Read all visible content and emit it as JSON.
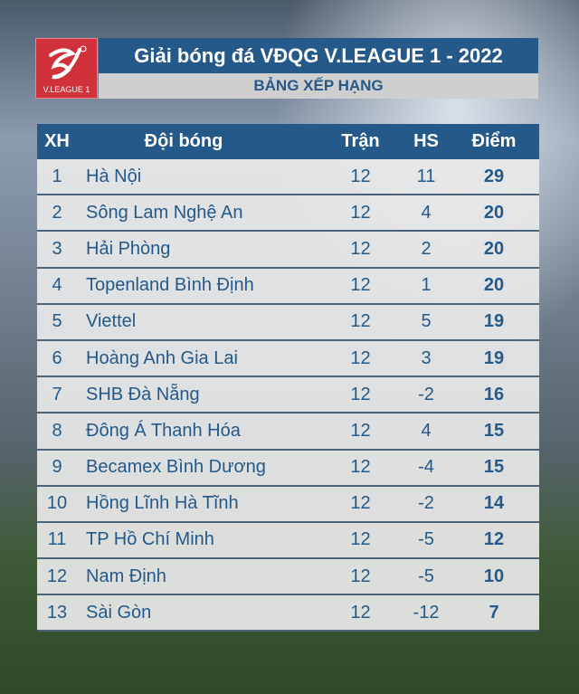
{
  "logo": {
    "text": "V.LEAGUE 1",
    "color": "#d0313a"
  },
  "header": {
    "title": "Giải bóng đá VĐQG V.LEAGUE 1 - 2022",
    "subtitle": "BẢNG XẾP HẠNG"
  },
  "table": {
    "columns": [
      "XH",
      "Đội bóng",
      "Trận",
      "HS",
      "Điểm"
    ],
    "rows": [
      [
        "1",
        "Hà Nội",
        "12",
        "11",
        "29"
      ],
      [
        "2",
        "Sông Lam Nghệ An",
        "12",
        "4",
        "20"
      ],
      [
        "3",
        "Hải Phòng",
        "12",
        "2",
        "20"
      ],
      [
        "4",
        "Topenland Bình Định",
        "12",
        "1",
        "20"
      ],
      [
        "5",
        "Viettel",
        "12",
        "5",
        "19"
      ],
      [
        "6",
        "Hoàng Anh Gia Lai",
        "12",
        "3",
        "19"
      ],
      [
        "7",
        "SHB Đà Nẵng",
        "12",
        "-2",
        "16"
      ],
      [
        "8",
        "Đông Á Thanh Hóa",
        "12",
        "4",
        "15"
      ],
      [
        "9",
        "Becamex Bình Dương",
        "12",
        "-4",
        "15"
      ],
      [
        "10",
        "Hồng Lĩnh Hà Tĩnh",
        "12",
        "-2",
        "14"
      ],
      [
        "11",
        "TP Hồ Chí Minh",
        "12",
        "-5",
        "12"
      ],
      [
        "12",
        "Nam Định",
        "12",
        "-5",
        "10"
      ],
      [
        "13",
        "Sài Gòn",
        "12",
        "-12",
        "7"
      ]
    ]
  },
  "colors": {
    "header_bg": "#24598a",
    "row_bg": "#e8e8e8"
  }
}
